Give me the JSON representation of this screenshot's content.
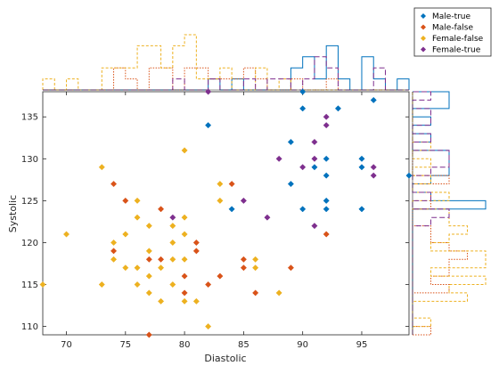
{
  "chart_data": {
    "type": "scatter",
    "xlabel": "Diastolic",
    "ylabel": "Systolic",
    "xlim": [
      68,
      99
    ],
    "ylim": [
      109,
      138
    ],
    "xticks": [
      70,
      75,
      80,
      85,
      90,
      95
    ],
    "yticks": [
      110,
      115,
      120,
      125,
      130,
      135
    ],
    "legend_position": "top-right",
    "series": [
      {
        "name": "Male-true",
        "color": "#0072BD",
        "points": [
          [
            82,
            134
          ],
          [
            84,
            124
          ],
          [
            89,
            132
          ],
          [
            89,
            127
          ],
          [
            90,
            138
          ],
          [
            90,
            136
          ],
          [
            90,
            124
          ],
          [
            91,
            129
          ],
          [
            92,
            130
          ],
          [
            92,
            128
          ],
          [
            92,
            125
          ],
          [
            92,
            124
          ],
          [
            93,
            136
          ],
          [
            95,
            130
          ],
          [
            95,
            129
          ],
          [
            95,
            124
          ],
          [
            96,
            137
          ],
          [
            99,
            128
          ]
        ]
      },
      {
        "name": "Male-false",
        "color": "#D95319",
        "points": [
          [
            74,
            127
          ],
          [
            74,
            119
          ],
          [
            75,
            125
          ],
          [
            77,
            118
          ],
          [
            77,
            109
          ],
          [
            78,
            124
          ],
          [
            78,
            118
          ],
          [
            80,
            116
          ],
          [
            80,
            114
          ],
          [
            81,
            120
          ],
          [
            81,
            119
          ],
          [
            82,
            115
          ],
          [
            83,
            116
          ],
          [
            84,
            127
          ],
          [
            85,
            118
          ],
          [
            85,
            117
          ],
          [
            86,
            114
          ],
          [
            89,
            117
          ],
          [
            92,
            121
          ]
        ]
      },
      {
        "name": "Female-false",
        "color": "#EDB120",
        "points": [
          [
            68,
            115
          ],
          [
            70,
            121
          ],
          [
            73,
            129
          ],
          [
            73,
            115
          ],
          [
            74,
            120
          ],
          [
            74,
            118
          ],
          [
            75,
            117
          ],
          [
            75,
            121
          ],
          [
            76,
            125
          ],
          [
            76,
            123
          ],
          [
            76,
            117
          ],
          [
            76,
            115
          ],
          [
            77,
            122
          ],
          [
            77,
            119
          ],
          [
            77,
            116
          ],
          [
            77,
            114
          ],
          [
            78,
            117
          ],
          [
            78,
            113
          ],
          [
            79,
            122
          ],
          [
            79,
            120
          ],
          [
            79,
            118
          ],
          [
            79,
            115
          ],
          [
            80,
            131
          ],
          [
            80,
            123
          ],
          [
            80,
            121
          ],
          [
            80,
            118
          ],
          [
            80,
            113
          ],
          [
            81,
            113
          ],
          [
            82,
            110
          ],
          [
            83,
            127
          ],
          [
            83,
            125
          ],
          [
            86,
            118
          ],
          [
            86,
            117
          ],
          [
            88,
            114
          ]
        ]
      },
      {
        "name": "Female-true",
        "color": "#7E2F8E",
        "points": [
          [
            79,
            123
          ],
          [
            82,
            138
          ],
          [
            85,
            125
          ],
          [
            87,
            123
          ],
          [
            88,
            130
          ],
          [
            90,
            129
          ],
          [
            91,
            132
          ],
          [
            91,
            130
          ],
          [
            91,
            122
          ],
          [
            92,
            135
          ],
          [
            92,
            134
          ],
          [
            96,
            129
          ],
          [
            96,
            128
          ]
        ]
      }
    ]
  }
}
